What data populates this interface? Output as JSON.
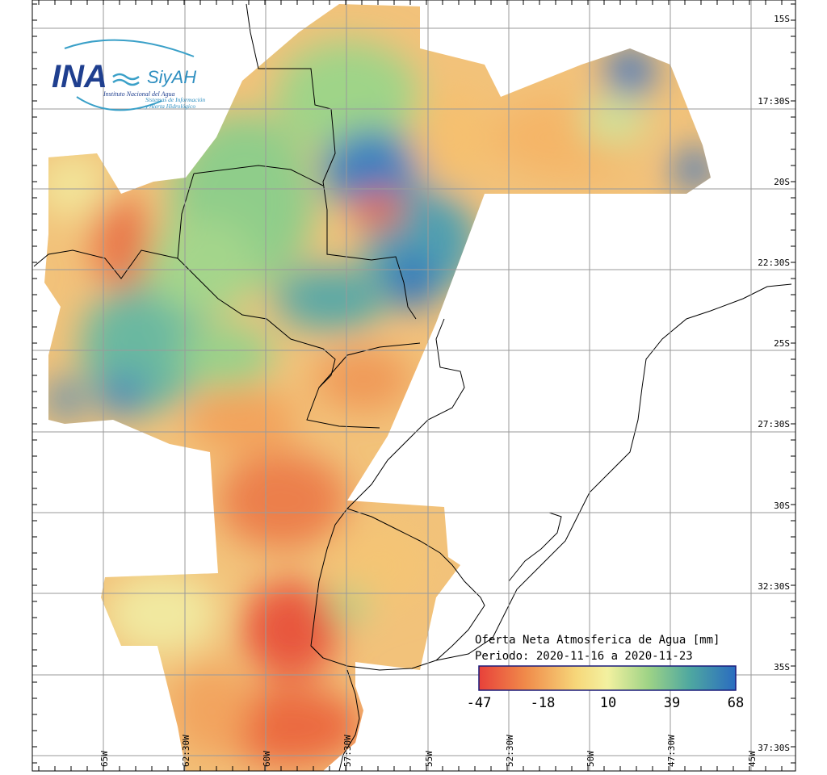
{
  "logo": {
    "ina": "INA",
    "siyah": "SiyAH",
    "institute": "Instituto Nacional del Agua",
    "system_line1": "Sistemas de Información",
    "system_line2": "y Alerta Hidrológico"
  },
  "map": {
    "title": "Oferta Neta Atmosferica de Agua [mm]",
    "period": "Periodo: 2020-11-16 a 2020-11-23",
    "lat_labels": [
      "15S",
      "17:30S",
      "20S",
      "22:30S",
      "25S",
      "27:30S",
      "30S",
      "32:30S",
      "35S",
      "37:30S"
    ],
    "lon_labels": [
      "65W",
      "62:30W",
      "60W",
      "57:30W",
      "55W",
      "52:30W",
      "50W",
      "47:30W",
      "45W"
    ]
  },
  "colorbar": {
    "min": -47,
    "max": 68,
    "tick_labels": [
      "-47",
      "-18",
      "10",
      "39",
      "68"
    ],
    "colors": [
      "#e8413a",
      "#f08a4a",
      "#f6d77a",
      "#f3f1a0",
      "#9ed386",
      "#4fa8a0",
      "#2a6cc0"
    ]
  }
}
